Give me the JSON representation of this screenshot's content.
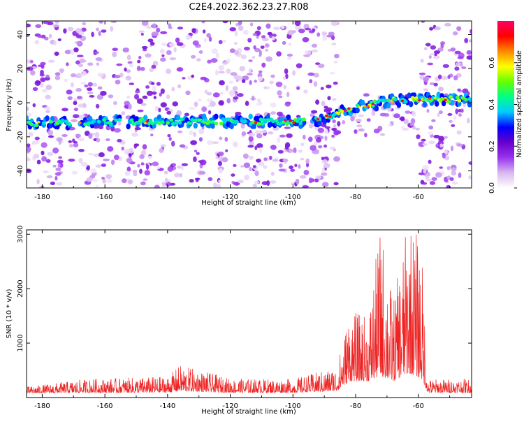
{
  "title": "C2E4.2022.362.23.27.R08",
  "chart_data": [
    {
      "type": "heatmap",
      "name": "spectrogram",
      "xlabel": "Height of straight line (km)",
      "ylabel": "Frequency (Hz)",
      "xlim": [
        -185,
        -43
      ],
      "ylim": [
        -50,
        48
      ],
      "xticks": [
        -180,
        -160,
        -140,
        -120,
        -100,
        -80,
        -60
      ],
      "yticks": [
        -40,
        -20,
        0,
        20,
        40
      ],
      "colorbar": {
        "label": "Normalized spectral amplitude",
        "range": [
          0,
          0.8
        ],
        "ticks": [
          "0.0",
          "0.2",
          "0.4",
          "0.6"
        ],
        "tick_values": [
          0.0,
          0.2,
          0.4,
          0.6
        ],
        "colors": [
          "#ffffff",
          "#d8b8f0",
          "#9933ee",
          "#6600cc",
          "#0000ff",
          "#00ccff",
          "#00ff88",
          "#66ff00",
          "#ffff00",
          "#ff8800",
          "#ff0000",
          "#ff0066"
        ]
      },
      "signal_track": [
        {
          "x": -183,
          "y": -12
        },
        {
          "x": -150,
          "y": -11
        },
        {
          "x": -120,
          "y": -11
        },
        {
          "x": -100,
          "y": -11
        },
        {
          "x": -92,
          "y": -10
        },
        {
          "x": -86,
          "y": -6
        },
        {
          "x": -80,
          "y": -3
        },
        {
          "x": -70,
          "y": 1
        },
        {
          "x": -62,
          "y": 2
        },
        {
          "x": -44,
          "y": 2
        }
      ],
      "gaps": [
        {
          "x_from": -171,
          "x_to": -168
        },
        {
          "x_from": -155,
          "x_to": -153
        },
        {
          "x_from": -124,
          "x_to": -123
        },
        {
          "x_from": -96,
          "x_to": -94
        }
      ],
      "blank_regions": [
        {
          "x_from": -86,
          "x_to": -59,
          "y_from": 5,
          "y_to": 48
        },
        {
          "x_from": -86,
          "x_to": -59,
          "y_from": -50,
          "y_to": -20
        }
      ]
    },
    {
      "type": "line",
      "name": "snr",
      "xlabel": "Height of straight line (km)",
      "ylabel": "SNR (10 * v/v)",
      "xlim": [
        -185,
        -43
      ],
      "ylim": [
        0,
        3080
      ],
      "xticks": [
        -180,
        -160,
        -140,
        -120,
        -100,
        -80,
        -60
      ],
      "yticks": [
        1000,
        2000,
        3000
      ],
      "color": "#ee2222",
      "envelope": [
        {
          "x": -185,
          "base": 80,
          "amp": 120
        },
        {
          "x": -166,
          "base": 90,
          "amp": 250
        },
        {
          "x": -140,
          "base": 90,
          "amp": 300
        },
        {
          "x": -136,
          "base": 120,
          "amp": 480
        },
        {
          "x": -120,
          "base": 90,
          "amp": 260
        },
        {
          "x": -100,
          "base": 90,
          "amp": 250
        },
        {
          "x": -86,
          "base": 120,
          "amp": 450
        },
        {
          "x": -82,
          "base": 300,
          "amp": 1300
        },
        {
          "x": -76,
          "base": 300,
          "amp": 1200
        },
        {
          "x": -72,
          "base": 400,
          "amp": 2800
        },
        {
          "x": -68,
          "base": 300,
          "amp": 1500
        },
        {
          "x": -63,
          "base": 450,
          "amp": 2900
        },
        {
          "x": -59,
          "base": 350,
          "amp": 2500
        },
        {
          "x": -57,
          "base": 90,
          "amp": 250
        },
        {
          "x": -43,
          "base": 90,
          "amp": 260
        }
      ]
    }
  ]
}
